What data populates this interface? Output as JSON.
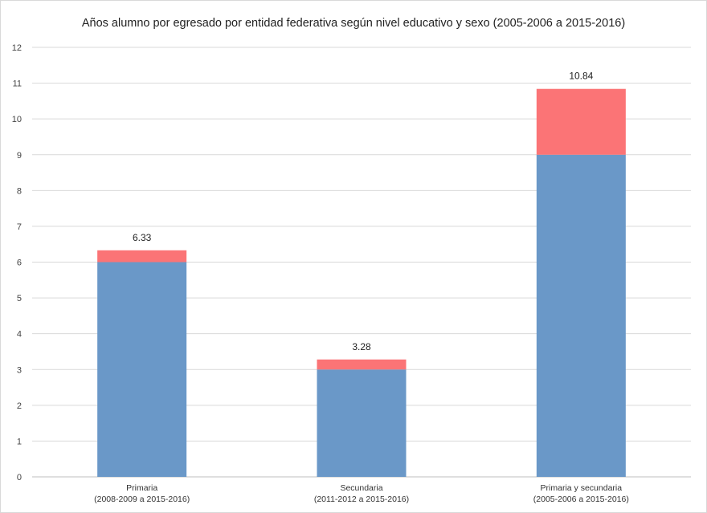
{
  "chart_data": {
    "type": "bar",
    "stacked": true,
    "title": "Años alumno por egresado por entidad federativa según nivel educativo y sexo (2005-2006 a 2015-2016)",
    "xlabel": "",
    "ylabel": "",
    "ylim": [
      0,
      12
    ],
    "yticks": [
      "0",
      "1",
      "2",
      "3",
      "4",
      "5",
      "6",
      "7",
      "8",
      "9",
      "10",
      "11",
      "12"
    ],
    "grid": true,
    "legend": "none",
    "categories": [
      [
        "Primaria",
        "(2008-2009 a 2015-2016)"
      ],
      [
        "Secundaria",
        "(2011-2012 a 2015-2016)"
      ],
      [
        "Primaria y secundaria",
        "(2005-2006 a 2015-2016)"
      ]
    ],
    "series": [
      {
        "values": [
          6,
          3,
          9
        ],
        "color": "#6a98c8"
      },
      {
        "values": [
          0.33,
          0.28,
          1.84
        ],
        "color": "#fb7476"
      }
    ],
    "totals": [
      "6.33",
      "3.28",
      "10.84"
    ]
  }
}
